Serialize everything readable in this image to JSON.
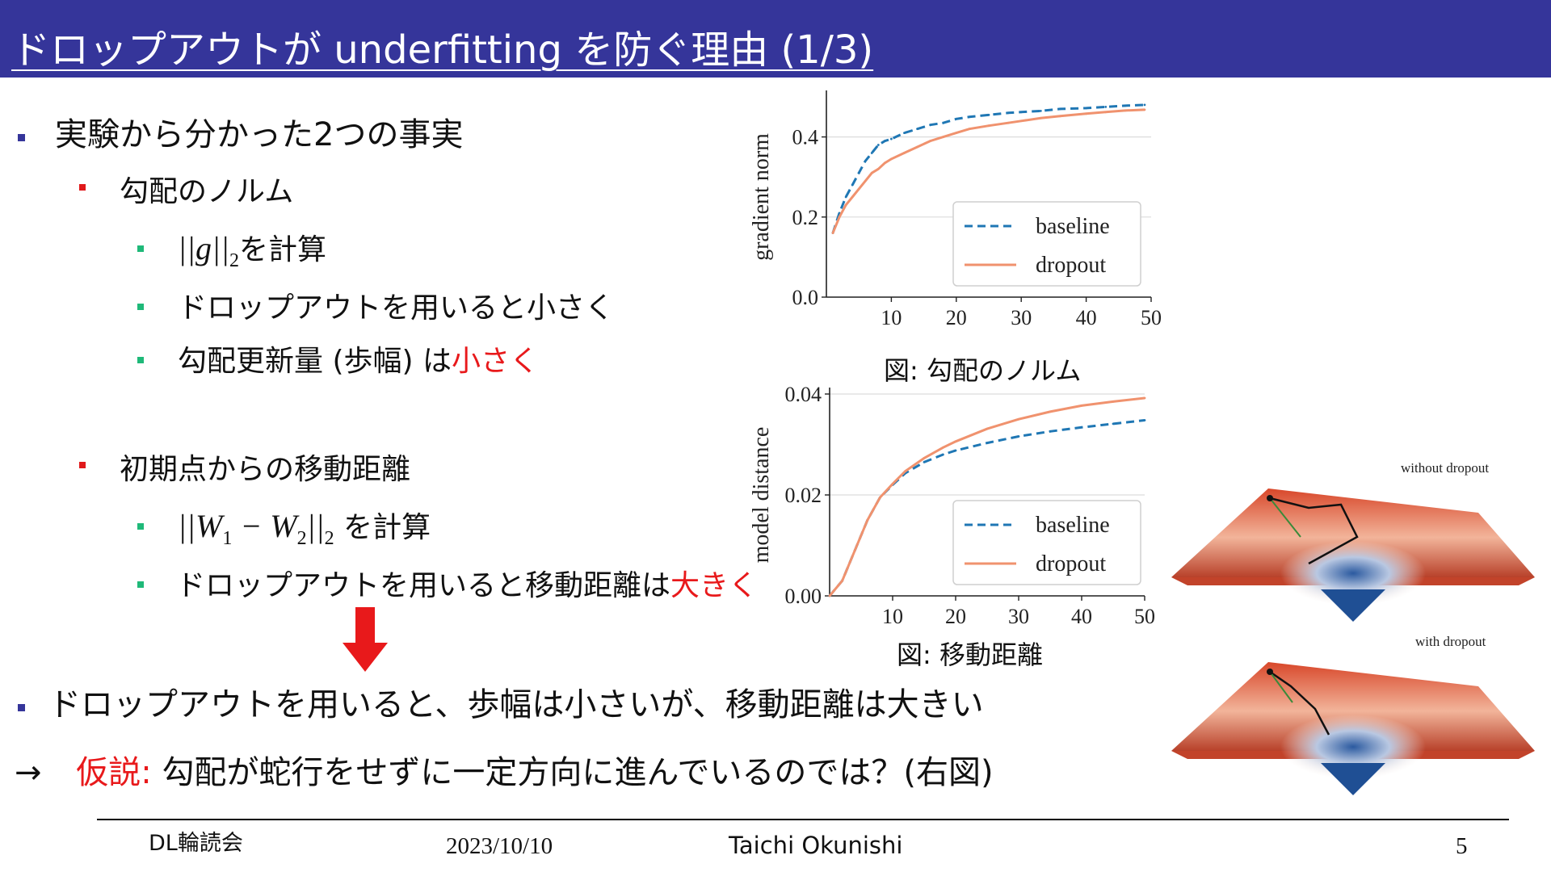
{
  "slide": {
    "title": "ドロップアウトが underfitting を防ぐ理由 (1/3)",
    "bullets": {
      "facts_heading": "実験から分かった2つの事実",
      "grad_norm_heading": "勾配のノルム",
      "grad_norm_compute_math": "||g||",
      "grad_norm_compute_sub": "2",
      "grad_norm_compute_suffix": "を計算",
      "grad_norm_dropout": "ドロップアウトを用いると小さく",
      "grad_norm_step_prefix": "勾配更新量 (歩幅) は",
      "grad_norm_step_highlight": "小さく",
      "distance_heading": "初期点からの移動距離",
      "distance_compute_math_a": "||W",
      "distance_compute_sub_a": "1",
      "distance_compute_math_b": " − W",
      "distance_compute_sub_b": "2",
      "distance_compute_math_c": "||",
      "distance_compute_sub_c": "2",
      "distance_compute_suffix": " を計算",
      "distance_dropout_prefix": "ドロップアウトを用いると移動距離は",
      "distance_dropout_highlight": "大きく",
      "conclusion": "ドロップアウトを用いると、歩幅は小さいが、移動距離は大きい",
      "hypothesis_arrow": "→",
      "hypothesis_label": "仮説",
      "hypothesis_colon": ":",
      "hypothesis_text": "勾配が蛇行をせずに一定方向に進んでいるのでは？(右図)"
    },
    "accent_colors": {
      "title_bar": "#35359a",
      "highlight_red": "#e8191b",
      "baseline": "#1f77b4",
      "dropout": "#f0926e"
    },
    "figures": {
      "grad_caption": "図: 勾配のノルム",
      "dist_caption": "図: 移動距離",
      "without_dropout_label": "without dropout",
      "with_dropout_label": "with dropout"
    },
    "footer": {
      "event": "DL輪読会",
      "date": "2023/10/10",
      "author": "Taichi Okunishi",
      "page": "5"
    }
  },
  "chart_data": [
    {
      "type": "line",
      "title": "",
      "xlabel": "",
      "ylabel": "gradient norm",
      "xlim": [
        0,
        50
      ],
      "ylim": [
        0,
        0.5
      ],
      "xticks": [
        10,
        20,
        30,
        40,
        50
      ],
      "yticks": [
        "0.0",
        "0.2",
        "0.4"
      ],
      "ytick_values": [
        0.0,
        0.2,
        0.4
      ],
      "grid": "horizontal",
      "legend_placement": "lower-right",
      "x": [
        1,
        2,
        3,
        4,
        5,
        6,
        7,
        8,
        9,
        10,
        12,
        14,
        16,
        18,
        20,
        22,
        25,
        28,
        30,
        33,
        36,
        40,
        43,
        46,
        49
      ],
      "series": [
        {
          "name": "baseline",
          "style": "dashed",
          "color": "#1f77b4",
          "values": [
            0.16,
            0.21,
            0.25,
            0.28,
            0.31,
            0.34,
            0.36,
            0.38,
            0.39,
            0.395,
            0.41,
            0.42,
            0.43,
            0.435,
            0.445,
            0.45,
            0.455,
            0.46,
            0.462,
            0.465,
            0.47,
            0.472,
            0.475,
            0.478,
            0.48
          ]
        },
        {
          "name": "dropout",
          "style": "solid",
          "color": "#f0926e",
          "values": [
            0.16,
            0.2,
            0.23,
            0.25,
            0.27,
            0.29,
            0.31,
            0.32,
            0.335,
            0.345,
            0.36,
            0.375,
            0.39,
            0.4,
            0.41,
            0.42,
            0.428,
            0.435,
            0.44,
            0.447,
            0.452,
            0.458,
            0.462,
            0.466,
            0.468
          ]
        }
      ]
    },
    {
      "type": "line",
      "title": "",
      "xlabel": "",
      "ylabel": "model distance",
      "xlim": [
        0,
        50
      ],
      "ylim": [
        0,
        0.04
      ],
      "xticks": [
        10,
        20,
        30,
        40,
        50
      ],
      "yticks": [
        "0.00",
        "0.02",
        "0.04"
      ],
      "ytick_values": [
        0.0,
        0.02,
        0.04
      ],
      "grid": "horizontal",
      "legend_placement": "lower-right",
      "x": [
        0,
        2,
        4,
        6,
        8,
        10,
        12,
        15,
        18,
        20,
        25,
        30,
        35,
        40,
        45,
        50
      ],
      "series": [
        {
          "name": "baseline",
          "style": "dashed",
          "color": "#1f77b4",
          "values": [
            0.0,
            0.003,
            0.009,
            0.015,
            0.0195,
            0.022,
            0.0243,
            0.0265,
            0.028,
            0.0288,
            0.0303,
            0.0316,
            0.0326,
            0.0334,
            0.0341,
            0.0348
          ]
        },
        {
          "name": "dropout",
          "style": "solid",
          "color": "#f0926e",
          "values": [
            0.0,
            0.003,
            0.009,
            0.015,
            0.0195,
            0.0222,
            0.0247,
            0.0273,
            0.0294,
            0.0306,
            0.0331,
            0.035,
            0.0365,
            0.0377,
            0.0385,
            0.0392
          ]
        }
      ]
    }
  ]
}
